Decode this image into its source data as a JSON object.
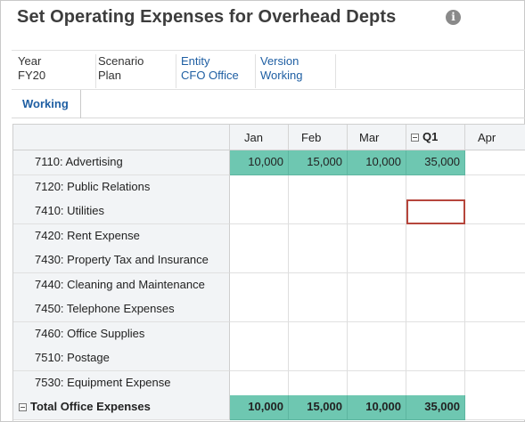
{
  "page": {
    "title": "Set Operating Expenses for Overhead Depts",
    "info_icon": "information-icon"
  },
  "pov": {
    "year": {
      "label": "Year",
      "value": "FY20"
    },
    "scenario": {
      "label": "Scenario",
      "value": "Plan"
    },
    "entity": {
      "label": "Entity",
      "value": "CFO Office"
    },
    "version": {
      "label": "Version",
      "value": "Working"
    }
  },
  "tabs": {
    "active": "Working"
  },
  "grid": {
    "columns": [
      "Jan",
      "Feb",
      "Mar",
      "Q1",
      "Apr"
    ],
    "rows": [
      {
        "label": "7110: Advertising",
        "values": [
          "10,000",
          "15,000",
          "10,000",
          "35,000",
          ""
        ]
      },
      {
        "label": "7120: Public Relations",
        "values": [
          "",
          "",
          "",
          "",
          ""
        ]
      },
      {
        "label": "7410: Utilities",
        "values": [
          "",
          "",
          "",
          "",
          ""
        ]
      },
      {
        "label": "7420: Rent Expense",
        "values": [
          "",
          "",
          "",
          "",
          ""
        ]
      },
      {
        "label": "7430: Property Tax and Insurance",
        "values": [
          "",
          "",
          "",
          "",
          ""
        ]
      },
      {
        "label": "7440: Cleaning and Maintenance",
        "values": [
          "",
          "",
          "",
          "",
          ""
        ]
      },
      {
        "label": "7450: Telephone Expenses",
        "values": [
          "",
          "",
          "",
          "",
          ""
        ]
      },
      {
        "label": "7460: Office Supplies",
        "values": [
          "",
          "",
          "",
          "",
          ""
        ]
      },
      {
        "label": "7510: Postage",
        "values": [
          "",
          "",
          "",
          "",
          ""
        ]
      },
      {
        "label": "7530: Equipment Expense",
        "values": [
          "",
          "",
          "",
          "",
          ""
        ]
      }
    ],
    "total": {
      "label": "Total Office Expenses",
      "values": [
        "10,000",
        "15,000",
        "10,000",
        "35,000",
        ""
      ]
    },
    "colors": {
      "filled": "#6ec7b1",
      "selected_border": "#b6463c",
      "header_bg": "#f2f4f6"
    }
  }
}
